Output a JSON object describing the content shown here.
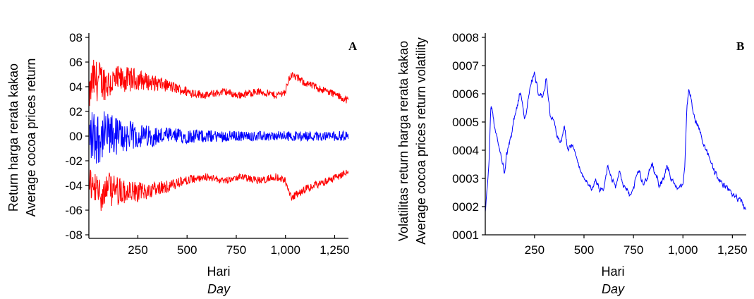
{
  "chart_data": [
    {
      "type": "line",
      "panel_label": "A",
      "xlabel": "Hari",
      "xlabel_en": "Day",
      "ylabel": "Return harga rerata kakao",
      "ylabel_en": "Average cocoa prices return",
      "xlim": [
        1,
        1320
      ],
      "ylim": [
        -0.08,
        0.08
      ],
      "x_ticks": [
        250,
        500,
        750,
        1000,
        1250
      ],
      "x_tick_labels": [
        "250",
        "500",
        "750",
        "1,000",
        "1,250"
      ],
      "y_ticks": [
        0.08,
        0.06,
        0.04,
        0.02,
        0.0,
        -0.02,
        -0.04,
        -0.06,
        -0.08
      ],
      "y_tick_labels": [
        "08",
        "06",
        "04",
        "02",
        "00",
        "-02",
        "-04",
        "-06",
        "-08"
      ],
      "series_styles": [
        {
          "color": "#ff0000",
          "role": "upper band"
        },
        {
          "color": "#0000ff",
          "role": "return"
        },
        {
          "color": "#ff0000",
          "role": "lower band"
        }
      ],
      "band_profile": {
        "x": [
          1,
          20,
          60,
          100,
          150,
          200,
          250,
          300,
          400,
          500,
          600,
          650,
          700,
          750,
          800,
          850,
          900,
          950,
          1000,
          1010,
          1030,
          1060,
          1100,
          1150,
          1200,
          1250,
          1300,
          1320
        ],
        "level": [
          0.03,
          0.045,
          0.045,
          0.043,
          0.045,
          0.046,
          0.046,
          0.044,
          0.041,
          0.036,
          0.033,
          0.035,
          0.036,
          0.033,
          0.034,
          0.036,
          0.035,
          0.033,
          0.036,
          0.043,
          0.05,
          0.047,
          0.043,
          0.04,
          0.037,
          0.034,
          0.03,
          0.029
        ],
        "noise": [
          0.012,
          0.018,
          0.016,
          0.014,
          0.012,
          0.01,
          0.009,
          0.007,
          0.005,
          0.004,
          0.003,
          0.003,
          0.003,
          0.003,
          0.003,
          0.003,
          0.003,
          0.003,
          0.003,
          0.003,
          0.003,
          0.003,
          0.003,
          0.003,
          0.003,
          0.003,
          0.003,
          0.003
        ]
      },
      "return_noise_profile": {
        "x": [
          1,
          30,
          80,
          150,
          250,
          400,
          600,
          800,
          1000,
          1100,
          1320
        ],
        "amp": [
          0.022,
          0.024,
          0.02,
          0.016,
          0.01,
          0.007,
          0.005,
          0.004,
          0.004,
          0.004,
          0.004
        ]
      }
    },
    {
      "type": "line",
      "panel_label": "B",
      "xlabel": "Hari",
      "xlabel_en": "Day",
      "ylabel": "Volatilitas return harga rerata kakao",
      "ylabel_en": "Average cocoa prices return volatility",
      "xlim": [
        1,
        1320
      ],
      "ylim": [
        0.0001,
        0.0008
      ],
      "x_ticks": [
        250,
        500,
        750,
        1000,
        1250
      ],
      "x_tick_labels": [
        "250",
        "500",
        "750",
        "1,000",
        "1,250"
      ],
      "y_ticks": [
        0.0008,
        0.0007,
        0.0006,
        0.0005,
        0.0004,
        0.0003,
        0.0002,
        0.0001
      ],
      "y_tick_labels": [
        "0008",
        "0007",
        "0006",
        "0005",
        "0004",
        "0003",
        "0002",
        "0001"
      ],
      "color": "#0000ff",
      "x": [
        1,
        10,
        20,
        30,
        45,
        60,
        80,
        100,
        110,
        130,
        150,
        180,
        200,
        230,
        250,
        270,
        290,
        310,
        330,
        350,
        360,
        380,
        400,
        420,
        440,
        460,
        480,
        500,
        520,
        540,
        560,
        580,
        600,
        620,
        640,
        660,
        680,
        700,
        720,
        740,
        760,
        780,
        800,
        820,
        840,
        860,
        880,
        900,
        920,
        940,
        960,
        980,
        1000,
        1010,
        1020,
        1030,
        1040,
        1060,
        1080,
        1100,
        1130,
        1160,
        1200,
        1230,
        1260,
        1290,
        1310,
        1320
      ],
      "y": [
        0.00018,
        0.00028,
        0.00035,
        0.00057,
        0.0005,
        0.00044,
        0.00038,
        0.00032,
        0.0004,
        0.00045,
        0.00052,
        0.0006,
        0.0005,
        0.00063,
        0.00068,
        0.0006,
        0.00058,
        0.00065,
        0.00052,
        0.0005,
        0.00045,
        0.00042,
        0.00048,
        0.0004,
        0.00042,
        0.00038,
        0.00033,
        0.0003,
        0.00028,
        0.00026,
        0.0003,
        0.00026,
        0.00026,
        0.00035,
        0.0003,
        0.00028,
        0.00032,
        0.00028,
        0.00025,
        0.00024,
        0.0003,
        0.00032,
        0.00028,
        0.0003,
        0.00036,
        0.00032,
        0.00028,
        0.0003,
        0.00035,
        0.0003,
        0.00027,
        0.00026,
        0.00028,
        0.00035,
        0.00055,
        0.00062,
        0.00058,
        0.0005,
        0.00048,
        0.00042,
        0.00038,
        0.00032,
        0.00028,
        0.00026,
        0.00024,
        0.00022,
        0.0002,
        0.00019
      ]
    }
  ]
}
